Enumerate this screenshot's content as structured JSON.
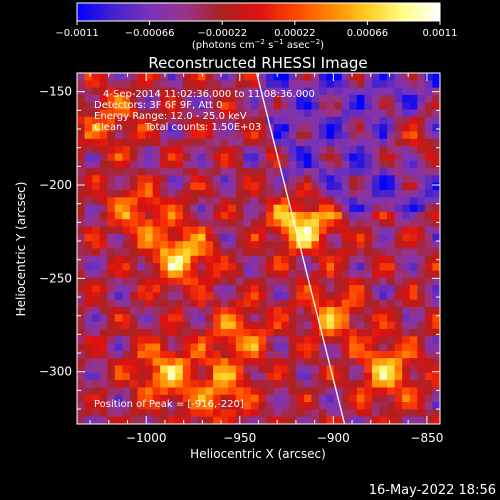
{
  "chart_data": {
    "type": "heatmap",
    "title": "Reconstructed RHESSI Image",
    "xlabel": "Heliocentric X (arcsec)",
    "ylabel": "Heliocentric Y (arcsec)",
    "xlim": [
      -1037,
      -843
    ],
    "ylim": [
      -328,
      -140
    ],
    "xticks": [
      -1000,
      -950,
      -900,
      -850
    ],
    "xtick_labels": [
      "−1000",
      "−950",
      "−900",
      "−850"
    ],
    "yticks": [
      -150,
      -200,
      -250,
      -300
    ],
    "ytick_labels": [
      "−150",
      "−200",
      "−250",
      "−300"
    ],
    "colorbar": {
      "range": [
        -0.0011,
        0.0011
      ],
      "ticks": [
        -0.0011,
        -0.00066,
        -0.00022,
        0.00022,
        0.00066,
        0.0011
      ],
      "tick_labels": [
        "−0.0011",
        "−0.00066",
        "−0.00022",
        "0.00022",
        "0.00066",
        "0.0011"
      ],
      "unit_label_parts": [
        "(photons cm",
        "−2",
        " s",
        "−1",
        " asec",
        "−2",
        ")"
      ],
      "colormap": [
        "#0000ff",
        "#4422cc",
        "#7733bb",
        "#993388",
        "#aa2222",
        "#dd1111",
        "#ff4400",
        "#ff8800",
        "#ffcc22",
        "#ffff88",
        "#ffffff"
      ]
    },
    "annotations": [
      "4-Sep-2014 11:02:36.000 to 11:08:36.000",
      "Detectors: 3F 6F 9F, Att 0",
      "Energy Range: 12.0 - 25.0 keV",
      "Clean",
      "Total counts: 1.50E+03"
    ],
    "peak_label": "Position of Peak = [-916,-220]",
    "peak": [
      -916,
      -220
    ],
    "limb_line": {
      "x": [
        -941,
        -894
      ],
      "y": [
        -140,
        -328
      ]
    },
    "hotspots": [
      {
        "x": -916,
        "y": -220,
        "v": 1.0
      },
      {
        "x": -982,
        "y": -238,
        "v": 0.85
      },
      {
        "x": -1005,
        "y": -215,
        "v": 0.55
      },
      {
        "x": -870,
        "y": -300,
        "v": 0.75
      },
      {
        "x": -990,
        "y": -300,
        "v": 0.7
      },
      {
        "x": -960,
        "y": -310,
        "v": 0.6
      },
      {
        "x": -900,
        "y": -270,
        "v": 0.6
      },
      {
        "x": -1020,
        "y": -165,
        "v": 0.5
      },
      {
        "x": -855,
        "y": -175,
        "v": 0.45
      },
      {
        "x": -950,
        "y": -280,
        "v": 0.55
      }
    ],
    "grid": false
  },
  "timestamp": "16-May-2022 18:56"
}
